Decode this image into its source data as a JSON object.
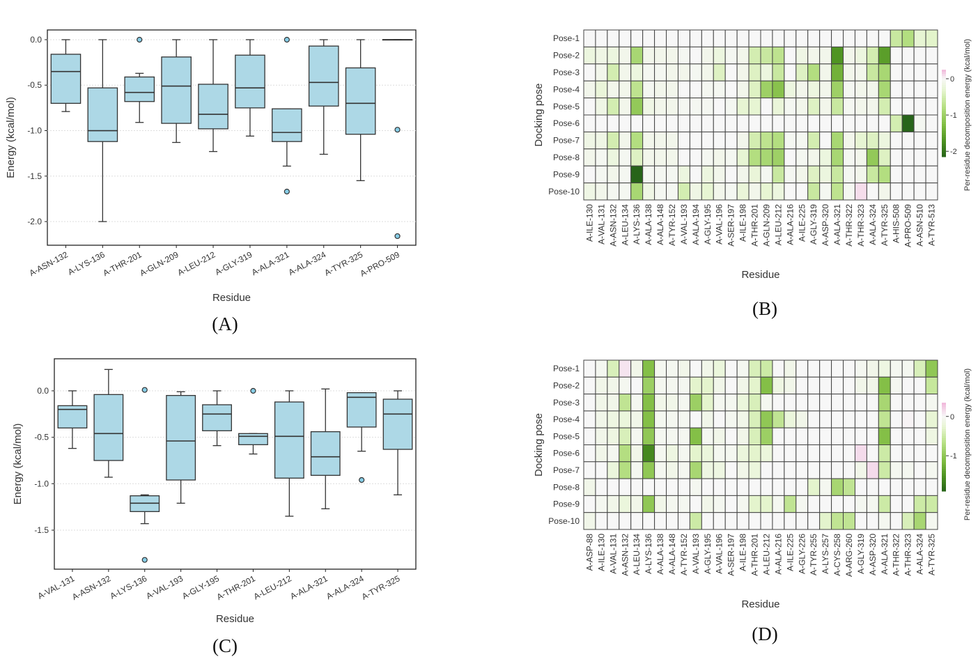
{
  "chart_data": [
    {
      "id": "A",
      "panel_label": "(A)",
      "type": "box",
      "xlabel": "Residue",
      "ylabel": "Energy (kcal/mol)",
      "ylim": [
        -2.26,
        0.107
      ],
      "yticks": [
        0.0,
        -0.5,
        -1.0,
        -1.5,
        -2.0
      ],
      "grid": true,
      "categories": [
        "A-ASN-132",
        "A-LYS-136",
        "A-THR-201",
        "A-GLN-209",
        "A-LEU-212",
        "A-GLY-319",
        "A-ALA-321",
        "A-ALA-324",
        "A-TYR-325",
        "A-PRO-509"
      ],
      "boxes": [
        {
          "low": -0.79,
          "q1": -0.7,
          "median": -0.35,
          "q3": -0.16,
          "high": 0.0,
          "outliers": []
        },
        {
          "low": -2.0,
          "q1": -1.12,
          "median": -1.0,
          "q3": -0.53,
          "high": 0.0,
          "outliers": []
        },
        {
          "low": -0.91,
          "q1": -0.68,
          "median": -0.58,
          "q3": -0.41,
          "high": -0.37,
          "outliers": [
            0.0
          ]
        },
        {
          "low": -1.13,
          "q1": -0.92,
          "median": -0.51,
          "q3": -0.19,
          "high": 0.0,
          "outliers": []
        },
        {
          "low": -1.23,
          "q1": -0.98,
          "median": -0.82,
          "q3": -0.49,
          "high": 0.0,
          "outliers": []
        },
        {
          "low": -1.06,
          "q1": -0.75,
          "median": -0.53,
          "q3": -0.17,
          "high": 0.0,
          "outliers": []
        },
        {
          "low": -1.39,
          "q1": -1.12,
          "median": -1.02,
          "q3": -0.76,
          "high": -0.76,
          "outliers": [
            0.0,
            -1.67
          ]
        },
        {
          "low": -1.26,
          "q1": -0.73,
          "median": -0.47,
          "q3": -0.07,
          "high": 0.0,
          "outliers": []
        },
        {
          "low": -1.55,
          "q1": -1.04,
          "median": -0.7,
          "q3": -0.31,
          "high": 0.0,
          "outliers": []
        },
        {
          "low": 0.0,
          "q1": 0.0,
          "median": 0.0,
          "q3": 0.0,
          "high": 0.0,
          "outliers": [
            -0.99,
            -2.16
          ]
        }
      ]
    },
    {
      "id": "B",
      "panel_label": "(B)",
      "type": "heatmap",
      "xlabel": "Residue",
      "ylabel": "Docking pose",
      "colorbar_label": "Per-residue decomposition energy (kcal/mol)",
      "colorbar_ticks": [
        0,
        -1,
        -2
      ],
      "color_range": [
        0.25,
        -2.15
      ],
      "rows": [
        "Pose-1",
        "Pose-2",
        "Pose-3",
        "Pose-4",
        "Pose-5",
        "Pose-6",
        "Pose-7",
        "Pose-8",
        "Pose-9",
        "Pose-10"
      ],
      "columns": [
        "A-ILE-130",
        "A-VAL-131",
        "A-ASN-132",
        "A-LEU-134",
        "A-LYS-136",
        "A-ALA-138",
        "A-ALA-148",
        "A-TYR-152",
        "A-VAL-193",
        "A-ALA-194",
        "A-GLY-195",
        "A-VAL-196",
        "A-SER-197",
        "A-ILE-198",
        "A-THR-201",
        "A-GLN-209",
        "A-LEU-212",
        "A-ALA-216",
        "A-ILE-225",
        "A-GLY-319",
        "A-ASP-320",
        "A-ALA-321",
        "A-THR-322",
        "A-THR-323",
        "A-ALA-324",
        "A-TYR-325",
        "A-HIS-508",
        "A-PRO-509",
        "A-ASN-510",
        "A-TYR-513"
      ],
      "values": [
        [
          0,
          0,
          0,
          0,
          0,
          0,
          0,
          0,
          0,
          0,
          0,
          0,
          0,
          0,
          0,
          0,
          0,
          0,
          0,
          0,
          0,
          0,
          0,
          0,
          0,
          0,
          -0.6,
          -0.8,
          -0.3,
          -0.35
        ],
        [
          -0.2,
          -0.15,
          -0.2,
          -0.1,
          -0.9,
          -0.1,
          -0.1,
          -0.1,
          -0.05,
          0,
          -0.1,
          -0.2,
          -0.05,
          -0.1,
          -0.5,
          -0.6,
          -0.7,
          0,
          -0.15,
          -0.1,
          -0.1,
          -1.7,
          -0.1,
          -0.2,
          -0.5,
          -1.6,
          0,
          0,
          0,
          0
        ],
        [
          0,
          -0.1,
          -0.5,
          -0.1,
          -0.2,
          -0.05,
          -0.05,
          -0.1,
          -0.1,
          -0.05,
          -0.1,
          -0.4,
          0,
          -0.1,
          -0.4,
          -0.2,
          -0.6,
          0,
          -0.4,
          -0.8,
          -0.1,
          -1.4,
          -0.1,
          -0.1,
          -0.6,
          -0.9,
          0,
          0,
          0,
          0
        ],
        [
          -0.1,
          -0.25,
          -0.1,
          -0.1,
          -0.7,
          -0.05,
          -0.1,
          -0.1,
          0,
          0,
          -0.05,
          -0.05,
          0,
          -0.1,
          -0.4,
          -1.0,
          -1.2,
          -0.2,
          -0.1,
          -0.2,
          -0.1,
          -1.0,
          -0.05,
          -0.1,
          -0.1,
          -0.9,
          0,
          0,
          0,
          0
        ],
        [
          0,
          -0.15,
          -0.5,
          -0.1,
          -1.1,
          -0.15,
          -0.1,
          -0.1,
          -0.05,
          -0.05,
          -0.05,
          0,
          -0.05,
          -0.3,
          -0.3,
          0,
          -0.25,
          -0.05,
          -0.1,
          -0.4,
          -0.1,
          -0.6,
          -0.05,
          -0.1,
          -0.1,
          -0.5,
          0,
          0,
          0,
          0
        ],
        [
          0,
          0,
          0,
          0,
          0,
          0,
          0,
          0,
          0,
          0,
          0,
          0,
          0,
          0,
          0,
          0,
          0,
          0,
          0,
          0,
          0,
          0,
          0,
          0,
          0,
          0,
          -0.5,
          -2.3,
          -0.05,
          0
        ],
        [
          -0.15,
          -0.15,
          -0.5,
          -0.1,
          -0.8,
          -0.1,
          -0.1,
          -0.1,
          0,
          0,
          0,
          0,
          0,
          -0.1,
          -0.5,
          -0.7,
          -0.8,
          -0.05,
          -0.05,
          -0.5,
          0,
          -0.9,
          -0.1,
          -0.3,
          -0.4,
          -0.2,
          0,
          0,
          0,
          0
        ],
        [
          -0.1,
          -0.05,
          -0.2,
          -0.05,
          -0.4,
          -0.1,
          -0.1,
          -0.1,
          0,
          0,
          -0.05,
          -0.1,
          -0.05,
          -0.3,
          -0.8,
          -0.9,
          -1.0,
          0,
          -0.05,
          -0.1,
          -0.2,
          -0.9,
          -0.05,
          -0.1,
          -1.1,
          -0.4,
          0,
          0,
          0,
          0
        ],
        [
          0,
          -0.05,
          -0.1,
          -0.05,
          -2.4,
          -0.05,
          -0.05,
          -0.05,
          -0.2,
          0,
          -0.2,
          -0.1,
          0,
          -0.1,
          -0.25,
          -0.05,
          -0.6,
          -0.05,
          -0.1,
          -0.4,
          -0.2,
          -0.6,
          -0.05,
          -0.1,
          -0.6,
          -0.8,
          0,
          0,
          0,
          0
        ],
        [
          -0.15,
          -0.1,
          -0.05,
          -0.05,
          -0.9,
          -0.15,
          -0.05,
          -0.05,
          -0.5,
          -0.15,
          -0.3,
          -0.1,
          -0.05,
          -0.25,
          -0.1,
          -0.3,
          -0.2,
          0,
          0,
          -0.6,
          -0.05,
          -0.7,
          -0.05,
          0.1,
          0,
          -0.1,
          0,
          0,
          0,
          0
        ]
      ]
    },
    {
      "id": "C",
      "panel_label": "(C)",
      "type": "box",
      "xlabel": "Residue",
      "ylabel": "Energy (kcal/mol)",
      "ylim": [
        -1.92,
        0.345
      ],
      "yticks": [
        0.0,
        -0.5,
        -1.0,
        -1.5
      ],
      "grid": true,
      "categories": [
        "A-VAL-131",
        "A-ASN-132",
        "A-LYS-136",
        "A-VAL-193",
        "A-GLY-195",
        "A-THR-201",
        "A-LEU-212",
        "A-ALA-321",
        "A-ALA-324",
        "A-TYR-325"
      ],
      "boxes": [
        {
          "low": -0.62,
          "q1": -0.4,
          "median": -0.2,
          "q3": -0.16,
          "high": 0.0,
          "outliers": []
        },
        {
          "low": -0.93,
          "q1": -0.75,
          "median": -0.46,
          "q3": -0.04,
          "high": 0.23,
          "outliers": []
        },
        {
          "low": -1.43,
          "q1": -1.3,
          "median": -1.21,
          "q3": -1.13,
          "high": -1.12,
          "outliers": [
            0.01,
            -1.82
          ]
        },
        {
          "low": -1.21,
          "q1": -0.96,
          "median": -0.54,
          "q3": -0.05,
          "high": -0.01,
          "outliers": []
        },
        {
          "low": -0.59,
          "q1": -0.43,
          "median": -0.25,
          "q3": -0.15,
          "high": 0.0,
          "outliers": []
        },
        {
          "low": -0.68,
          "q1": -0.58,
          "median": -0.49,
          "q3": -0.46,
          "high": -0.46,
          "outliers": [
            0.0
          ]
        },
        {
          "low": -1.35,
          "q1": -0.94,
          "median": -0.49,
          "q3": -0.12,
          "high": 0.0,
          "outliers": []
        },
        {
          "low": -1.27,
          "q1": -0.91,
          "median": -0.71,
          "q3": -0.44,
          "high": 0.02,
          "outliers": []
        },
        {
          "low": -0.65,
          "q1": -0.39,
          "median": -0.07,
          "q3": -0.02,
          "high": -0.02,
          "outliers": [
            -0.96
          ]
        },
        {
          "low": -1.12,
          "q1": -0.63,
          "median": -0.25,
          "q3": -0.09,
          "high": 0.0,
          "outliers": []
        }
      ]
    },
    {
      "id": "D",
      "panel_label": "(D)",
      "type": "heatmap",
      "xlabel": "Residue",
      "ylabel": "Docking pose",
      "colorbar_label": "Per-residue decomposition energy (kcal/mol)",
      "colorbar_ticks": [
        0,
        -1
      ],
      "color_range": [
        0.35,
        -1.9
      ],
      "rows": [
        "Pose-1",
        "Pose-2",
        "Pose-3",
        "Pose-4",
        "Pose-5",
        "Pose-6",
        "Pose-7",
        "Pose-8",
        "Pose-9",
        "Pose-10"
      ],
      "columns": [
        "A-ASP-88",
        "A-ILE-130",
        "A-VAL-131",
        "A-ASN-132",
        "A-LEU-134",
        "A-LYS-136",
        "A-ALA-138",
        "A-ALA-148",
        "A-TYR-152",
        "A-VAL-193",
        "A-GLY-195",
        "A-VAL-196",
        "A-SER-197",
        "A-ILE-198",
        "A-THR-201",
        "A-LEU-212",
        "A-ALA-216",
        "A-ILE-225",
        "A-GLY-226",
        "A-TYR-255",
        "A-LYS-257",
        "A-CYS-258",
        "A-ARG-260",
        "A-GLY-319",
        "A-ASP-320",
        "A-ALA-321",
        "A-THR-322",
        "A-THR-323",
        "A-ALA-324",
        "A-TYR-325"
      ],
      "values": [
        [
          0,
          -0.05,
          -0.4,
          0.1,
          -0.1,
          -1.1,
          -0.05,
          -0.05,
          -0.1,
          0,
          -0.1,
          -0.2,
          0,
          -0.05,
          -0.4,
          -0.5,
          0,
          -0.1,
          0,
          0,
          0,
          0,
          0,
          -0.05,
          -0.1,
          -0.15,
          -0.05,
          -0.05,
          -0.4,
          -1.0
        ],
        [
          0,
          -0.1,
          -0.1,
          -0.05,
          0,
          -0.9,
          -0.05,
          -0.05,
          -0.05,
          -0.3,
          -0.3,
          -0.1,
          0,
          -0.1,
          -0.3,
          -1.1,
          -0.15,
          -0.1,
          0,
          0,
          0,
          0,
          0,
          -0.1,
          -0.1,
          -1.1,
          -0.05,
          0,
          0,
          -0.55
        ],
        [
          0,
          -0.1,
          -0.1,
          -0.6,
          -0.05,
          -1.1,
          -0.1,
          -0.1,
          -0.05,
          -0.9,
          -0.3,
          -0.05,
          -0.05,
          -0.2,
          -0.4,
          -0.05,
          0,
          0,
          0,
          0,
          0,
          0,
          0,
          0,
          0,
          -0.8,
          0,
          0,
          0,
          -0.05
        ],
        [
          0,
          -0.1,
          -0.15,
          -0.2,
          -0.1,
          -1.1,
          -0.05,
          -0.05,
          -0.05,
          0,
          -0.1,
          0,
          -0.05,
          -0.1,
          -0.4,
          -1.0,
          -0.6,
          -0.2,
          -0.1,
          0,
          0,
          0,
          0,
          0,
          0,
          -0.6,
          0,
          0.02,
          0,
          -0.25
        ],
        [
          0,
          -0.1,
          -0.15,
          -0.4,
          -0.05,
          -1.0,
          -0.05,
          -0.05,
          -0.05,
          -1.1,
          -0.05,
          -0.1,
          0,
          -0.1,
          -0.4,
          -0.9,
          0,
          0,
          0,
          0,
          0,
          0,
          0,
          0,
          0,
          -1.1,
          0,
          0,
          0,
          -0.15
        ],
        [
          0,
          -0.1,
          -0.05,
          -0.7,
          -0.1,
          -1.6,
          -0.05,
          -0.15,
          -0.05,
          -0.3,
          -0.2,
          -0.05,
          -0.05,
          -0.2,
          -0.3,
          -0.2,
          0,
          0,
          0,
          0,
          0,
          0,
          0,
          0.15,
          0,
          -0.5,
          0,
          0,
          0,
          0
        ],
        [
          0,
          0,
          -0.2,
          -0.7,
          -0.05,
          -1.0,
          -0.05,
          -0.1,
          -0.05,
          -0.8,
          -0.15,
          -0.15,
          0,
          -0.1,
          -0.2,
          0,
          0,
          0,
          0,
          0,
          0,
          0,
          0,
          -0.1,
          0.15,
          -0.5,
          -0.05,
          -0.05,
          0,
          -0.05
        ],
        [
          -0.1,
          0,
          0,
          0,
          0,
          0,
          0,
          0,
          0,
          -0.05,
          0,
          0,
          0,
          0,
          0,
          0,
          0,
          0,
          0,
          -0.3,
          -0.05,
          -0.8,
          -0.6,
          0,
          0,
          0,
          0,
          0,
          0,
          0
        ],
        [
          0,
          -0.05,
          -0.1,
          -0.2,
          -0.1,
          -1.0,
          -0.1,
          -0.05,
          -0.05,
          0,
          -0.1,
          -0.05,
          0,
          -0.05,
          -0.3,
          -0.3,
          -0.05,
          -0.6,
          -0.05,
          0,
          0,
          0,
          0,
          -0.05,
          -0.05,
          -0.5,
          0,
          0,
          -0.5,
          -0.5
        ],
        [
          -0.1,
          0,
          0,
          0,
          0,
          0,
          0,
          0,
          0,
          -0.5,
          0,
          0,
          0,
          0,
          0,
          0,
          0,
          0,
          0,
          0,
          -0.3,
          -0.6,
          -0.6,
          0,
          0,
          -0.05,
          0,
          -0.4,
          -0.8,
          -0.05
        ]
      ]
    }
  ],
  "colors": {
    "box_fill": "#add8e6",
    "box_stroke": "#333333",
    "outlier_fill": "#87cde6",
    "diverge_pos": "#f1b6da",
    "neutral": "#f7f7f7",
    "green_dark": "#276419"
  }
}
